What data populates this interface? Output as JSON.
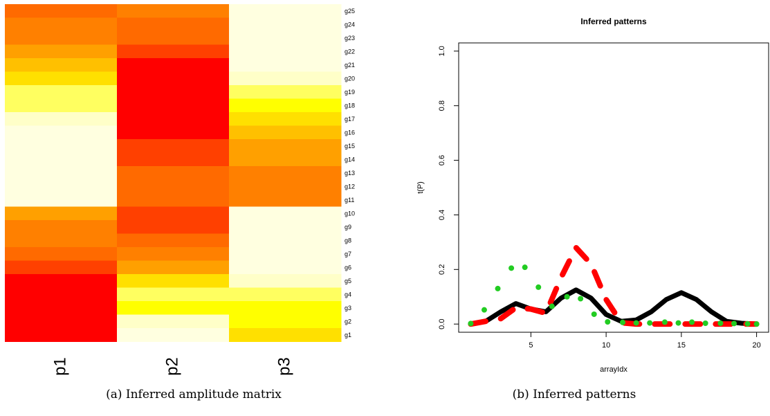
{
  "captions": {
    "a": "(a) Inferred amplitude matrix",
    "b": "(b) Inferred patterns"
  },
  "colors": {
    "scale": [
      "#FF0000",
      "#FF4000",
      "#FF6A00",
      "#FF8000",
      "#FFA000",
      "#FFC000",
      "#FFE000",
      "#FFFF00",
      "#FFFF60",
      "#FFFFC8",
      "#FFFFE0"
    ],
    "line_black": "#000000",
    "dash_red": "#FF0000",
    "dot_green": "#22CC22"
  },
  "chart_data": [
    {
      "type": "heatmap",
      "title": "",
      "columns": [
        "p1",
        "p2",
        "p3"
      ],
      "rows": [
        "g25",
        "g24",
        "g23",
        "g22",
        "g21",
        "g20",
        "g19",
        "g18",
        "g17",
        "g16",
        "g15",
        "g14",
        "g13",
        "g12",
        "g11",
        "g10",
        "g9",
        "g8",
        "g7",
        "g6",
        "g5",
        "g4",
        "g3",
        "g2",
        "g1"
      ],
      "values": [
        [
          0.8,
          0.7,
          0.0
        ],
        [
          0.72,
          0.82,
          0.0
        ],
        [
          0.72,
          0.82,
          0.0
        ],
        [
          0.65,
          0.9,
          0.0
        ],
        [
          0.55,
          1.0,
          0.0
        ],
        [
          0.4,
          1.0,
          0.12
        ],
        [
          0.22,
          1.0,
          0.25
        ],
        [
          0.25,
          1.0,
          0.3
        ],
        [
          0.15,
          1.0,
          0.45
        ],
        [
          0.0,
          1.0,
          0.55
        ],
        [
          0.0,
          0.92,
          0.65
        ],
        [
          0.0,
          0.92,
          0.65
        ],
        [
          0.0,
          0.82,
          0.75
        ],
        [
          0.0,
          0.82,
          0.75
        ],
        [
          0.0,
          0.82,
          0.75
        ],
        [
          0.58,
          0.92,
          0.0
        ],
        [
          0.68,
          0.92,
          0.0
        ],
        [
          0.74,
          0.82,
          0.0
        ],
        [
          0.84,
          0.75,
          0.0
        ],
        [
          0.92,
          0.58,
          0.0
        ],
        [
          1.0,
          0.38,
          0.08
        ],
        [
          1.0,
          0.22,
          0.2
        ],
        [
          1.0,
          0.26,
          0.35
        ],
        [
          1.0,
          0.12,
          0.35
        ],
        [
          1.0,
          0.03,
          0.45
        ]
      ]
    },
    {
      "type": "line",
      "title": "Inferred patterns",
      "xlabel": "arrayIdx",
      "ylabel": "t(P)",
      "xlim": [
        0.2,
        20.8
      ],
      "ylim": [
        -0.03,
        1.03
      ],
      "xticks": [
        5,
        10,
        15,
        20
      ],
      "yticks": [
        0.0,
        0.2,
        0.4,
        0.6,
        0.8,
        1.0
      ],
      "ytick_labels": [
        "0.0",
        "0.2",
        "0.4",
        "0.6",
        "0.8",
        "1.0"
      ],
      "grid": false,
      "series": [
        {
          "style": "solid-thick",
          "x": [
            1,
            2,
            3,
            4,
            5,
            6,
            7,
            8,
            9,
            10,
            11,
            12,
            13,
            14,
            15,
            16,
            17,
            18,
            19,
            20
          ],
          "y": [
            0.0,
            0.01,
            0.045,
            0.075,
            0.055,
            0.045,
            0.095,
            0.125,
            0.095,
            0.035,
            0.01,
            0.015,
            0.045,
            0.09,
            0.115,
            0.09,
            0.045,
            0.01,
            0.003,
            0.0
          ]
        },
        {
          "style": "dashed-thick",
          "x": [
            1,
            2,
            3,
            4,
            5,
            6,
            7,
            8,
            9,
            10,
            11,
            12,
            13,
            14,
            15,
            16,
            17,
            18,
            19,
            20
          ],
          "y": [
            0.0,
            0.01,
            0.02,
            0.06,
            0.055,
            0.04,
            0.17,
            0.28,
            0.22,
            0.09,
            0.005,
            0.0,
            0.0,
            0.0,
            0.0,
            0.0,
            0.0,
            0.0,
            0.0,
            0.0
          ]
        },
        {
          "style": "dotted-points",
          "x": [
            1,
            1.9,
            2.8,
            3.7,
            4.6,
            5.5,
            6.4,
            7.4,
            8.3,
            9.2,
            10.1,
            11.1,
            12.0,
            12.9,
            13.9,
            14.8,
            15.7,
            16.6,
            17.6,
            18.5,
            19.4,
            20.0
          ],
          "y": [
            0.002,
            0.052,
            0.13,
            0.205,
            0.208,
            0.135,
            0.065,
            0.1,
            0.093,
            0.036,
            0.008,
            0.006,
            0.004,
            0.004,
            0.007,
            0.004,
            0.007,
            0.003,
            0.003,
            0.002,
            0.001,
            0.0
          ]
        }
      ]
    }
  ]
}
